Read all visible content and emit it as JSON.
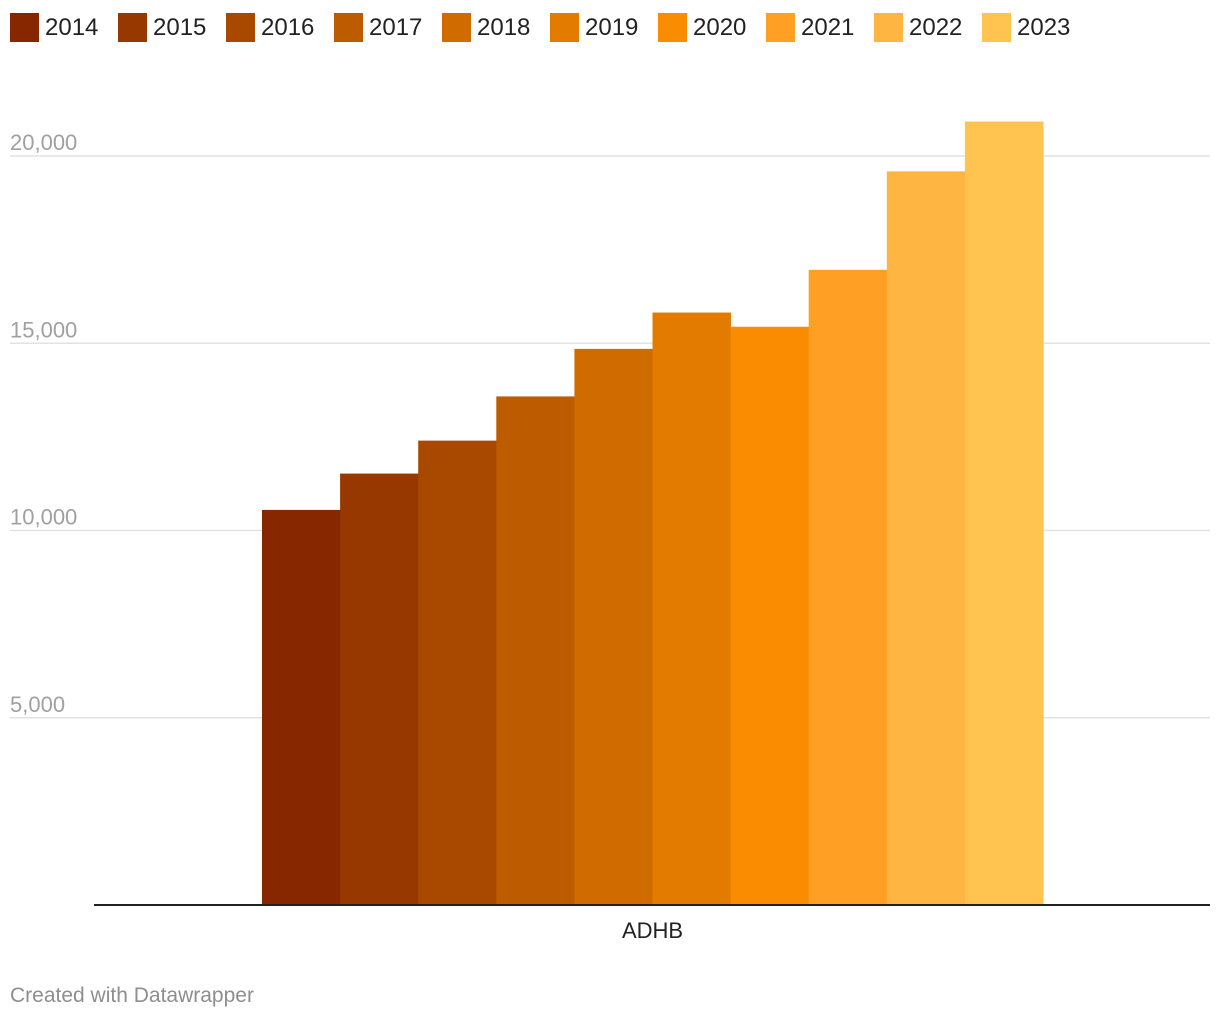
{
  "chart_data": {
    "type": "bar",
    "categories": [
      "ADHB"
    ],
    "series": [
      {
        "name": "2014",
        "color": "#862700",
        "values": [
          10550
        ]
      },
      {
        "name": "2015",
        "color": "#963800",
        "values": [
          11520
        ]
      },
      {
        "name": "2016",
        "color": "#a94900",
        "values": [
          12400
        ]
      },
      {
        "name": "2017",
        "color": "#bc5b00",
        "values": [
          13580
        ]
      },
      {
        "name": "2018",
        "color": "#d06b00",
        "values": [
          14850
        ]
      },
      {
        "name": "2019",
        "color": "#e27b00",
        "values": [
          15820
        ]
      },
      {
        "name": "2020",
        "color": "#f98c00",
        "values": [
          15440
        ]
      },
      {
        "name": "2021",
        "color": "#ff9f24",
        "values": [
          16960
        ]
      },
      {
        "name": "2022",
        "color": "#ffb542",
        "values": [
          19590
        ]
      },
      {
        "name": "2023",
        "color": "#ffc44f",
        "values": [
          20920
        ]
      }
    ],
    "yticks": [
      {
        "value": 5000,
        "label": "5,000"
      },
      {
        "value": 10000,
        "label": "10,000"
      },
      {
        "value": 15000,
        "label": "15,000"
      },
      {
        "value": 20000,
        "label": "20,000"
      }
    ],
    "ylim": [
      0,
      22000
    ],
    "grid": true,
    "legend_position": "top-left",
    "title": "",
    "xlabel": "",
    "ylabel": ""
  },
  "footer": {
    "credit": "Created with Datawrapper"
  }
}
